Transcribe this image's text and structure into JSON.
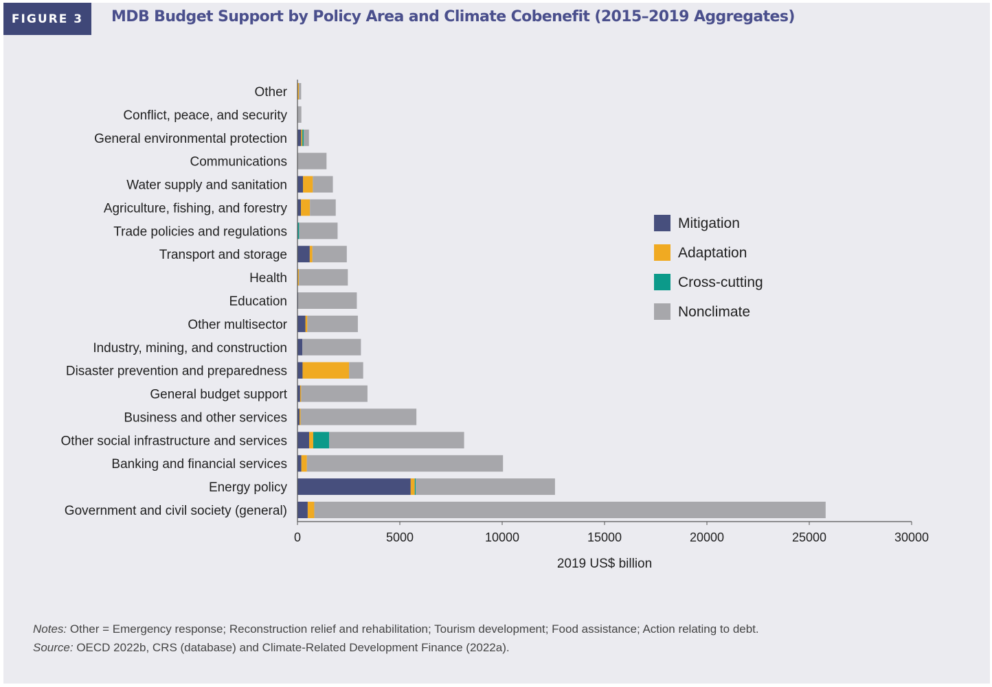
{
  "figure_label": "FIGURE 3",
  "title": "MDB Budget Support by Policy Area and Climate Cobenefit (2015–2019 Aggregates)",
  "notes": {
    "notes_prefix": "Notes:",
    "notes_text": "Other = Emergency response; Reconstruction relief and rehabilitation; Tourism development; Food assistance; Action relating to debt.",
    "source_prefix": "Source:",
    "source_text": "OECD 2022b, CRS (database) and Climate-Related Development Finance (2022a)."
  },
  "colors": {
    "Mitigation": "#474f7d",
    "Adaptation": "#f0aa22",
    "Cross-cutting": "#0c9a8a",
    "Nonclimate": "#a7a7ab"
  },
  "chart_data": {
    "type": "bar",
    "orientation": "horizontal",
    "stacked": true,
    "categories": [
      "Other",
      "Conflict, peace, and security",
      "General environmental protection",
      "Communications",
      "Water supply and sanitation",
      "Agriculture, fishing, and forestry",
      "Trade policies and regulations",
      "Transport and storage",
      "Health",
      "Education",
      "Other multisector",
      "Industry, mining, and construction",
      "Disaster prevention and preparedness",
      "General budget support",
      "Business and other services",
      "Other social infrastructure and services",
      "Banking and financial services",
      "Energy policy",
      "Government and civil society (general)"
    ],
    "series": [
      {
        "name": "Mitigation",
        "values": [
          10,
          20,
          180,
          20,
          270,
          170,
          20,
          600,
          20,
          30,
          390,
          240,
          250,
          130,
          100,
          570,
          190,
          5530,
          500
        ]
      },
      {
        "name": "Adaptation",
        "values": [
          60,
          0,
          60,
          0,
          480,
          440,
          0,
          130,
          50,
          0,
          90,
          0,
          2270,
          50,
          50,
          200,
          270,
          200,
          320
        ]
      },
      {
        "name": "Cross-cutting",
        "values": [
          0,
          0,
          60,
          0,
          0,
          0,
          60,
          0,
          0,
          0,
          0,
          0,
          0,
          0,
          0,
          780,
          0,
          50,
          0
        ]
      },
      {
        "name": "Nonclimate",
        "values": [
          110,
          170,
          260,
          1400,
          980,
          1260,
          1880,
          1680,
          2390,
          2870,
          2470,
          2860,
          690,
          3240,
          5660,
          6590,
          9580,
          6800,
          24980
        ]
      }
    ],
    "xlabel": "2019 US$ billion",
    "xlim": [
      0,
      30000
    ],
    "xticks": [
      0,
      5000,
      10000,
      15000,
      20000,
      25000,
      30000
    ],
    "grid": false,
    "legend_position": "right"
  }
}
